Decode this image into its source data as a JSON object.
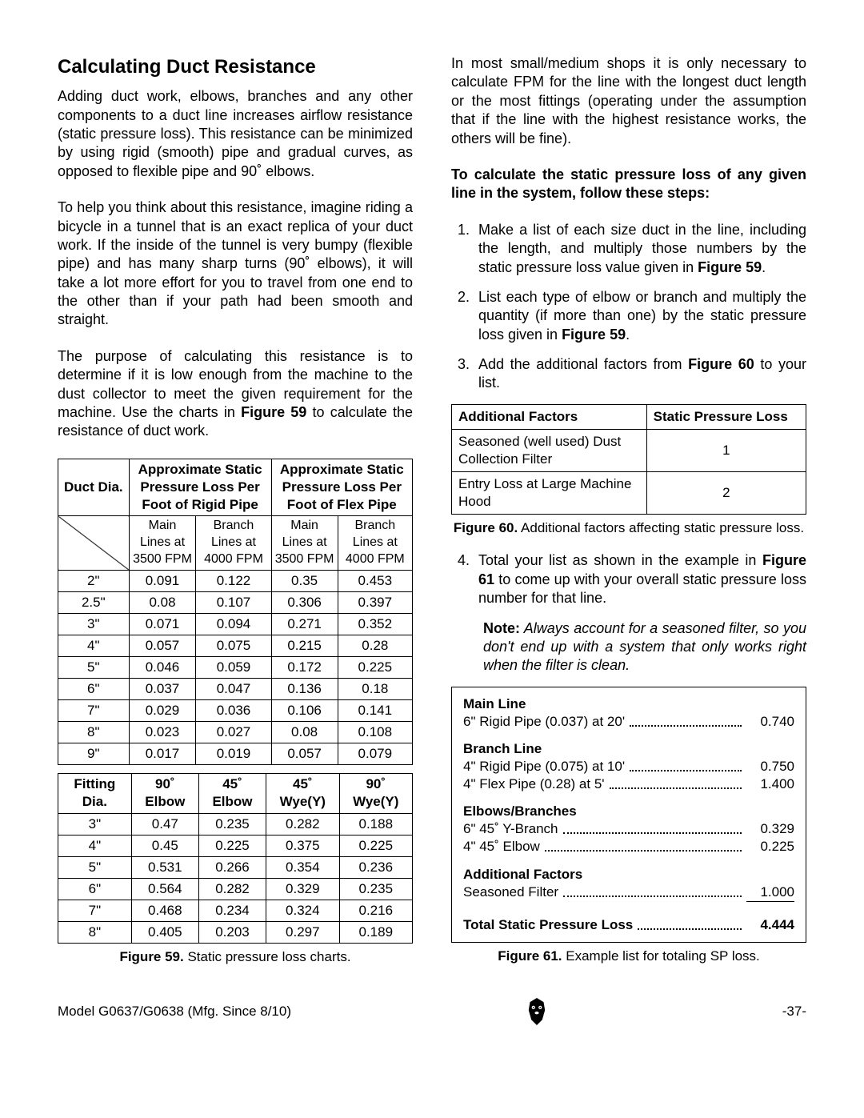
{
  "heading": "Calculating Duct Resistance",
  "para1": "Adding duct work, elbows, branches and any other components to a duct line increases airflow resistance (static pressure loss). This resistance can be minimized by using rigid (smooth) pipe and gradual curves, as opposed to flexible pipe and 90˚ elbows.",
  "para2": "To help you think about this resistance, imagine riding a bicycle in a tunnel that is an exact replica of your duct work. If the inside of the tunnel is very bumpy (flexible pipe) and has many sharp turns (90˚ elbows), it will take a lot more effort for you to travel from one end to the other than if your path had been smooth and straight.",
  "para3_a": "The purpose of calculating this resistance is to determine if it is low enough from the machine to the dust collector to meet the given requirement for the machine. Use the charts in ",
  "para3_fig": "Figure 59",
  "para3_b": " to calculate the resistance of duct work.",
  "table1": {
    "h1": "Duct Dia.",
    "h2": "Approximate Static Pressure Loss Per Foot of Rigid Pipe",
    "h3": "Approximate Static Pressure Loss Per Foot of Flex Pipe",
    "sub": [
      "Main Lines at 3500 FPM",
      "Branch Lines at 4000 FPM",
      "Main Lines at 3500 FPM",
      "Branch Lines at 4000 FPM"
    ],
    "rows": [
      [
        "2\"",
        "0.091",
        "0.122",
        "0.35",
        "0.453"
      ],
      [
        "2.5\"",
        "0.08",
        "0.107",
        "0.306",
        "0.397"
      ],
      [
        "3\"",
        "0.071",
        "0.094",
        "0.271",
        "0.352"
      ],
      [
        "4\"",
        "0.057",
        "0.075",
        "0.215",
        "0.28"
      ],
      [
        "5\"",
        "0.046",
        "0.059",
        "0.172",
        "0.225"
      ],
      [
        "6\"",
        "0.037",
        "0.047",
        "0.136",
        "0.18"
      ],
      [
        "7\"",
        "0.029",
        "0.036",
        "0.106",
        "0.141"
      ],
      [
        "8\"",
        "0.023",
        "0.027",
        "0.08",
        "0.108"
      ],
      [
        "9\"",
        "0.017",
        "0.019",
        "0.057",
        "0.079"
      ]
    ]
  },
  "table2": {
    "headers": [
      "Fitting Dia.",
      "90˚ Elbow",
      "45˚ Elbow",
      "45˚ Wye(Y)",
      "90˚ Wye(Y)"
    ],
    "rows": [
      [
        "3\"",
        "0.47",
        "0.235",
        "0.282",
        "0.188"
      ],
      [
        "4\"",
        "0.45",
        "0.225",
        "0.375",
        "0.225"
      ],
      [
        "5\"",
        "0.531",
        "0.266",
        "0.354",
        "0.236"
      ],
      [
        "6\"",
        "0.564",
        "0.282",
        "0.329",
        "0.235"
      ],
      [
        "7\"",
        "0.468",
        "0.234",
        "0.324",
        "0.216"
      ],
      [
        "8\"",
        "0.405",
        "0.203",
        "0.297",
        "0.189"
      ]
    ]
  },
  "caption59_a": "Figure 59.",
  "caption59_b": " Static pressure loss charts.",
  "rpara1": "In most small/medium shops it is only necessary to calculate FPM for the line with the longest duct length or the most fittings (operating under the assumption that if the line with the highest resistance works, the others will be fine).",
  "rbold": "To calculate the static pressure loss of any given line in the system, follow these steps:",
  "step1_a": "Make a list of each size duct in the line, including the length, and multiply those numbers by the static pressure loss value given in ",
  "step1_fig": "Figure 59",
  "step1_b": ".",
  "step2_a": "List each type of elbow or branch and multiply the quantity (if more than one) by the static pressure loss given in ",
  "step2_fig": "Figure 59",
  "step2_b": ".",
  "step3_a": "Add the additional factors from ",
  "step3_fig": "Figure 60",
  "step3_b": " to your list.",
  "af": {
    "h1": "Additional Factors",
    "h2": "Static Pressure Loss",
    "r1a": "Seasoned (well used) Dust Collection Filter",
    "r1b": "1",
    "r2a": "Entry Loss at Large Machine Hood",
    "r2b": "2"
  },
  "caption60_a": "Figure 60.",
  "caption60_b": " Additional factors affecting static pressure loss.",
  "step4_a": "Total your list as shown in the example in ",
  "step4_fig": "Figure 61",
  "step4_b": " to come up with your overall static pressure loss number for that line.",
  "note_a": "Note:",
  "note_b": " Always account for a seasoned filter, so you don't end up with a system that only works right when the filter is clean.",
  "ex": {
    "g1h": "Main Line",
    "g1r1l": "6\" Rigid Pipe (0.037) at 20'",
    "g1r1v": "0.740",
    "g2h": "Branch Line",
    "g2r1l": "4\" Rigid Pipe (0.075) at 10'",
    "g2r1v": "0.750",
    "g2r2l": "4\" Flex Pipe (0.28) at 5'",
    "g2r2v": "1.400",
    "g3h": "Elbows/Branches",
    "g3r1l": "6\" 45˚ Y-Branch",
    "g3r1v": "0.329",
    "g3r2l": "4\" 45˚ Elbow",
    "g3r2v": "0.225",
    "g4h": "Additional Factors",
    "g4r1l": "Seasoned Filter",
    "g4r1v": "1.000",
    "tot_l": "Total Static Pressure Loss",
    "tot_v": "4.444"
  },
  "caption61_a": "Figure 61.",
  "caption61_b": " Example list for totaling SP loss.",
  "footer_l": "Model G0637/G0638 (Mfg. Since 8/10)",
  "footer_r": "-37-"
}
